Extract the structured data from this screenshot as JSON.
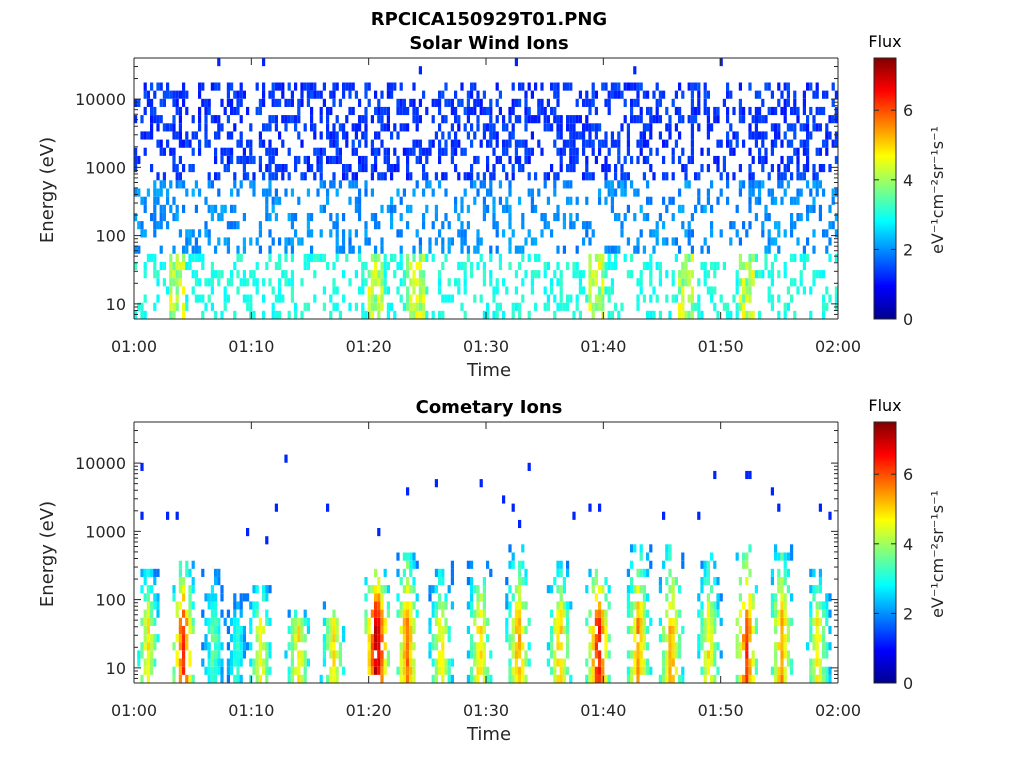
{
  "figure_title": "RPCICA150929T01.PNG",
  "colors": {
    "colormap": "jet",
    "background": "#ffffff",
    "axis": "#262626"
  },
  "chart_data": [
    {
      "type": "heatmap",
      "title": "Solar Wind Ions",
      "xlabel": "Time",
      "ylabel": "Energy (eV)",
      "x_ticks": [
        "01:00",
        "01:10",
        "01:20",
        "01:30",
        "01:40",
        "01:50",
        "02:00"
      ],
      "xlim_minutes": [
        0,
        60
      ],
      "y_scale": "log",
      "y_ticks": [
        "10",
        "100",
        "1000",
        "10000"
      ],
      "ylim": [
        6,
        40000
      ],
      "colorbar": {
        "title": "Flux",
        "unit": "eV⁻¹cm⁻²sr⁻¹s⁻¹",
        "ticks": [
          "0",
          "2",
          "4",
          "6"
        ],
        "range": [
          0,
          7.5
        ]
      },
      "description_bands": [
        {
          "energy_range_eV": [
            600,
            20000
          ],
          "flux_level": 1.3,
          "density": 0.38
        },
        {
          "energy_range_eV": [
            60,
            600
          ],
          "flux_level": 2.0,
          "density": 0.26
        },
        {
          "energy_range_eV": [
            6,
            60
          ],
          "flux_level": 3.0,
          "density": 0.3
        }
      ],
      "bursts_minutes": [
        3.8,
        20.5,
        24.0,
        39.5,
        47.0,
        52.3
      ],
      "grid": false
    },
    {
      "type": "heatmap",
      "title": "Cometary Ions",
      "xlabel": "Time",
      "ylabel": "Energy (eV)",
      "x_ticks": [
        "01:00",
        "01:10",
        "01:20",
        "01:30",
        "01:40",
        "01:50",
        "02:00"
      ],
      "xlim_minutes": [
        0,
        60
      ],
      "y_scale": "log",
      "y_ticks": [
        "10",
        "100",
        "1000",
        "10000"
      ],
      "ylim": [
        6,
        40000
      ],
      "colorbar": {
        "title": "Flux",
        "unit": "eV⁻¹cm⁻²sr⁻¹s⁻¹",
        "ticks": [
          "0",
          "2",
          "4",
          "6"
        ],
        "range": [
          0,
          7.5
        ]
      },
      "bursts": [
        {
          "minute": 1.2,
          "peak_flux": 4.8,
          "top_eV": 220
        },
        {
          "minute": 4.2,
          "peak_flux": 6.3,
          "top_eV": 260
        },
        {
          "minute": 6.8,
          "peak_flux": 3.6,
          "top_eV": 250
        },
        {
          "minute": 8.8,
          "peak_flux": 3.2,
          "top_eV": 90
        },
        {
          "minute": 10.8,
          "peak_flux": 4.8,
          "top_eV": 140
        },
        {
          "minute": 14.0,
          "peak_flux": 4.9,
          "top_eV": 60
        },
        {
          "minute": 17.0,
          "peak_flux": 4.9,
          "top_eV": 70
        },
        {
          "minute": 20.7,
          "peak_flux": 7.3,
          "top_eV": 220
        },
        {
          "minute": 23.3,
          "peak_flux": 5.8,
          "top_eV": 380
        },
        {
          "minute": 26.2,
          "peak_flux": 4.9,
          "top_eV": 260
        },
        {
          "minute": 29.5,
          "peak_flux": 5.1,
          "top_eV": 320
        },
        {
          "minute": 32.8,
          "peak_flux": 5.5,
          "top_eV": 450
        },
        {
          "minute": 36.3,
          "peak_flux": 5.3,
          "top_eV": 260
        },
        {
          "minute": 39.6,
          "peak_flux": 6.6,
          "top_eV": 260
        },
        {
          "minute": 43.0,
          "peak_flux": 5.6,
          "top_eV": 500
        },
        {
          "minute": 45.8,
          "peak_flux": 5.5,
          "top_eV": 450
        },
        {
          "minute": 49.0,
          "peak_flux": 4.9,
          "top_eV": 400
        },
        {
          "minute": 52.2,
          "peak_flux": 6.2,
          "top_eV": 500
        },
        {
          "minute": 55.2,
          "peak_flux": 5.5,
          "top_eV": 480
        },
        {
          "minute": 58.3,
          "peak_flux": 4.9,
          "top_eV": 220
        }
      ],
      "sparse_points": [
        {
          "minute": 0.8,
          "energy_eV": 8000
        },
        {
          "minute": 0.8,
          "energy_eV": 1500
        },
        {
          "minute": 3.0,
          "energy_eV": 1600
        },
        {
          "minute": 3.6,
          "energy_eV": 1600
        },
        {
          "minute": 9.8,
          "energy_eV": 850
        },
        {
          "minute": 11.4,
          "energy_eV": 750
        },
        {
          "minute": 12.2,
          "energy_eV": 2000
        },
        {
          "minute": 12.9,
          "energy_eV": 11000
        },
        {
          "minute": 16.5,
          "energy_eV": 2500
        },
        {
          "minute": 20.8,
          "energy_eV": 900
        },
        {
          "minute": 23.4,
          "energy_eV": 4400
        },
        {
          "minute": 25.8,
          "energy_eV": 5800
        },
        {
          "minute": 29.6,
          "energy_eV": 5300
        },
        {
          "minute": 31.5,
          "energy_eV": 2800
        },
        {
          "minute": 32.3,
          "energy_eV": 2200
        },
        {
          "minute": 32.9,
          "energy_eV": 1300
        },
        {
          "minute": 33.6,
          "energy_eV": 10000
        },
        {
          "minute": 37.5,
          "energy_eV": 1700
        },
        {
          "minute": 38.9,
          "energy_eV": 2200
        },
        {
          "minute": 39.8,
          "energy_eV": 2500
        },
        {
          "minute": 45.1,
          "energy_eV": 1600
        },
        {
          "minute": 48.2,
          "energy_eV": 1600
        },
        {
          "minute": 49.5,
          "energy_eV": 6800
        },
        {
          "minute": 52.2,
          "energy_eV": 7000
        },
        {
          "minute": 52.6,
          "energy_eV": 6800
        },
        {
          "minute": 54.3,
          "energy_eV": 3900
        },
        {
          "minute": 55.0,
          "energy_eV": 2500
        },
        {
          "minute": 58.6,
          "energy_eV": 2100
        },
        {
          "minute": 59.2,
          "energy_eV": 1700
        }
      ],
      "grid": false
    }
  ]
}
